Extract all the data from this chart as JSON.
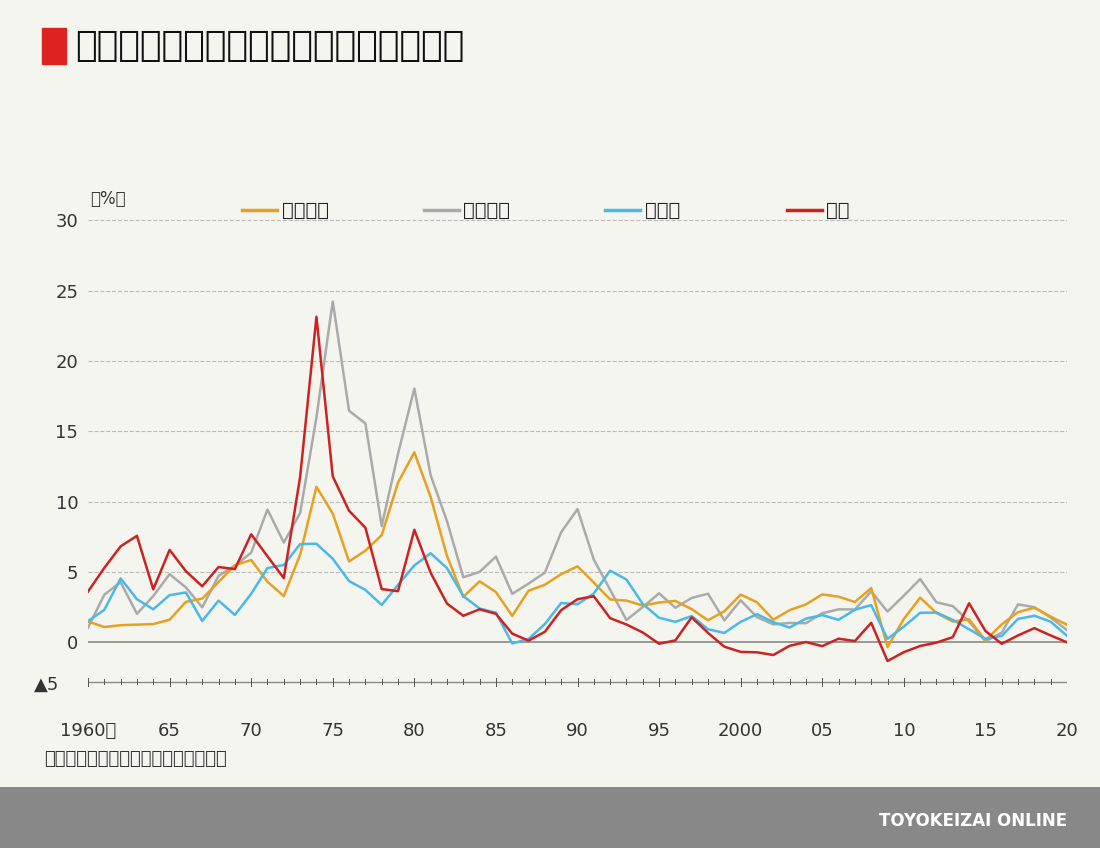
{
  "title": "先進国よりずっと低い日本のインフレ率",
  "ylabel": "（%）",
  "source": "（出所）世界銀行データより筆者作成",
  "watermark": "TOYOKEIZAI ONLINE",
  "title_color": "#111111",
  "bg_color": "#f5f5f0",
  "plot_bg_color": "#f5f5f0",
  "grid_color": "#bbbbbb",
  "years": [
    1960,
    1961,
    1962,
    1963,
    1964,
    1965,
    1966,
    1967,
    1968,
    1969,
    1970,
    1971,
    1972,
    1973,
    1974,
    1975,
    1976,
    1977,
    1978,
    1979,
    1980,
    1981,
    1982,
    1983,
    1984,
    1985,
    1986,
    1987,
    1988,
    1989,
    1990,
    1991,
    1992,
    1993,
    1994,
    1995,
    1996,
    1997,
    1998,
    1999,
    2000,
    2001,
    2002,
    2003,
    2004,
    2005,
    2006,
    2007,
    2008,
    2009,
    2010,
    2011,
    2012,
    2013,
    2014,
    2015,
    2016,
    2017,
    2018,
    2019,
    2020
  ],
  "america": [
    1.46,
    1.07,
    1.2,
    1.24,
    1.28,
    1.59,
    2.86,
    3.09,
    4.27,
    5.46,
    5.84,
    4.29,
    3.27,
    6.22,
    11.05,
    9.14,
    5.74,
    6.5,
    7.61,
    11.35,
    13.5,
    10.32,
    6.13,
    3.21,
    4.32,
    3.56,
    1.86,
    3.65,
    4.08,
    4.83,
    5.39,
    4.23,
    3.03,
    2.95,
    2.6,
    2.81,
    2.93,
    2.34,
    1.55,
    2.19,
    3.38,
    2.83,
    1.59,
    2.27,
    2.68,
    3.39,
    3.23,
    2.85,
    3.84,
    -0.36,
    1.64,
    3.16,
    2.07,
    1.46,
    1.62,
    0.12,
    1.26,
    2.13,
    2.44,
    1.81,
    1.23
  ],
  "uk": [
    1.02,
    3.37,
    4.26,
    2.01,
    3.27,
    4.83,
    3.89,
    2.47,
    4.71,
    5.44,
    6.36,
    9.43,
    7.08,
    9.18,
    15.98,
    24.24,
    16.46,
    15.56,
    8.26,
    13.39,
    18.04,
    11.87,
    8.61,
    4.61,
    4.99,
    6.08,
    3.43,
    4.16,
    4.94,
    7.81,
    9.46,
    5.87,
    3.72,
    1.57,
    2.49,
    3.47,
    2.44,
    3.14,
    3.44,
    1.54,
    2.97,
    1.77,
    1.26,
    1.36,
    1.34,
    2.05,
    2.33,
    2.32,
    3.61,
    2.17,
    3.3,
    4.48,
    2.83,
    2.56,
    1.45,
    0.05,
    0.67,
    2.68,
    2.48,
    1.74,
    0.85
  ],
  "germany": [
    1.49,
    2.29,
    4.53,
    3.05,
    2.33,
    3.34,
    3.53,
    1.5,
    2.95,
    1.93,
    3.43,
    5.27,
    5.48,
    6.97,
    7.0,
    5.93,
    4.34,
    3.71,
    2.64,
    4.07,
    5.45,
    6.32,
    5.26,
    3.27,
    2.39,
    2.09,
    -0.1,
    0.22,
    1.28,
    2.78,
    2.69,
    3.46,
    5.08,
    4.45,
    2.71,
    1.73,
    1.44,
    1.85,
    0.91,
    0.65,
    1.44,
    1.98,
    1.42,
    1.03,
    1.67,
    1.92,
    1.58,
    2.3,
    2.63,
    0.23,
    1.1,
    2.08,
    2.1,
    1.58,
    0.91,
    0.23,
    0.44,
    1.65,
    1.87,
    1.45,
    0.44
  ],
  "japan": [
    3.59,
    5.28,
    6.81,
    7.56,
    3.75,
    6.56,
    5.04,
    3.97,
    5.34,
    5.19,
    7.67,
    6.1,
    4.55,
    11.74,
    23.15,
    11.79,
    9.34,
    8.14,
    3.77,
    3.62,
    7.99,
    4.93,
    2.74,
    1.87,
    2.33,
    2.01,
    0.6,
    0.1,
    0.73,
    2.27,
    3.05,
    3.26,
    1.7,
    1.25,
    0.68,
    -0.12,
    0.12,
    1.76,
    0.65,
    -0.33,
    -0.7,
    -0.73,
    -0.92,
    -0.27,
    0.0,
    -0.29,
    0.24,
    0.07,
    1.37,
    -1.35,
    -0.72,
    -0.28,
    -0.04,
    0.35,
    2.76,
    0.79,
    -0.12,
    0.47,
    0.99,
    0.47,
    -0.02
  ],
  "america_color": "#e8a020",
  "uk_color": "#aaaaaa",
  "germany_color": "#4ab8e8",
  "japan_color": "#cc2222",
  "line_width": 1.8,
  "ylim_top": 30,
  "ylim_bottom": -5,
  "xtick_labels": [
    "1960年",
    "65",
    "70",
    "75",
    "80",
    "85",
    "90",
    "95",
    "2000",
    "05",
    "10",
    "15",
    "20"
  ],
  "xtick_positions": [
    1960,
    1965,
    1970,
    1975,
    1980,
    1985,
    1990,
    1995,
    2000,
    2005,
    2010,
    2015,
    2020
  ],
  "legend_labels": [
    "アメリカ",
    "イギリス",
    "ドイツ",
    "日本"
  ]
}
